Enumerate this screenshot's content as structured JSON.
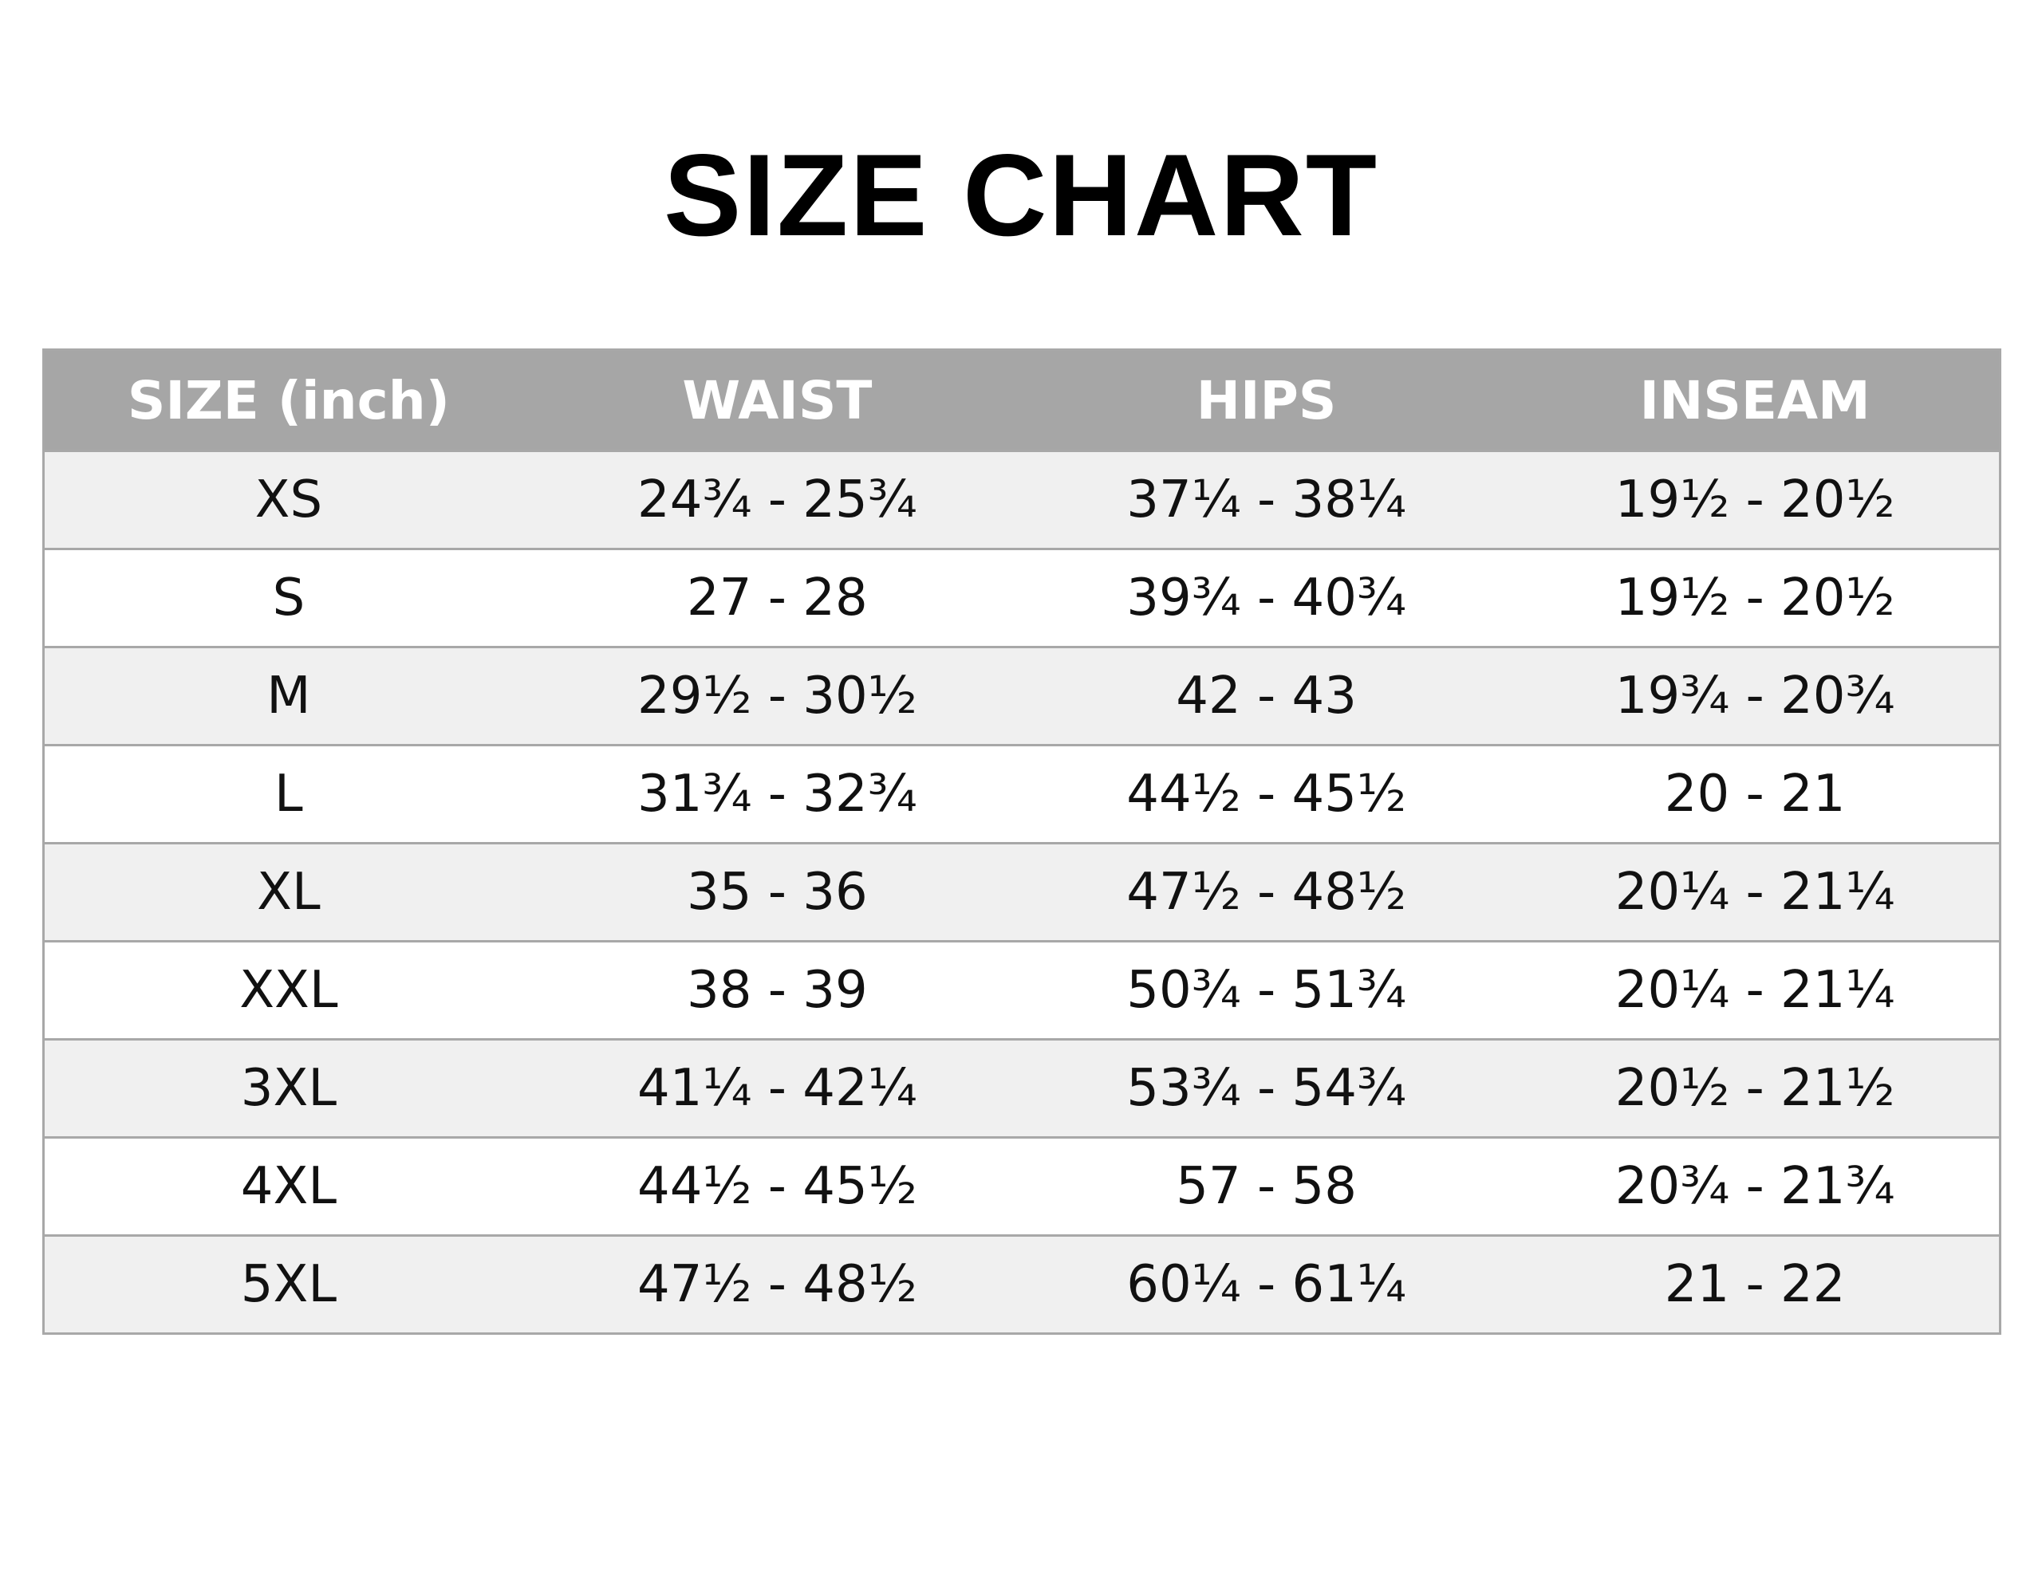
{
  "title": "SIZE CHART",
  "colors": {
    "header_bg": "#a6a6a6",
    "header_text": "#ffffff",
    "row_alt_bg": "#f0f0f0",
    "row_bg": "#ffffff",
    "border": "#a8a8a8"
  },
  "chart_data": {
    "type": "table",
    "title": "SIZE CHART",
    "columns": [
      "SIZE (inch)",
      "WAIST",
      "HIPS",
      "INSEAM"
    ],
    "rows": [
      [
        "XS",
        "24¾ - 25¾",
        "37¼ - 38¼",
        "19½ - 20½"
      ],
      [
        "S",
        "27 - 28",
        "39¾ - 40¾",
        "19½ - 20½"
      ],
      [
        "M",
        "29½ - 30½",
        "42 - 43",
        "19¾ - 20¾"
      ],
      [
        "L",
        "31¾ - 32¾",
        "44½ - 45½",
        "20 - 21"
      ],
      [
        "XL",
        "35 - 36",
        "47½ - 48½",
        "20¼ - 21¼"
      ],
      [
        "XXL",
        "38 - 39",
        "50¾ - 51¾",
        "20¼ - 21¼"
      ],
      [
        "3XL",
        "41¼ - 42¼",
        "53¾ - 54¾",
        "20½ - 21½"
      ],
      [
        "4XL",
        "44½ - 45½",
        "57 - 58",
        "20¾ - 21¾"
      ],
      [
        "5XL",
        "47½ - 48½",
        "60¼ - 61¼",
        "21 - 22"
      ]
    ]
  }
}
